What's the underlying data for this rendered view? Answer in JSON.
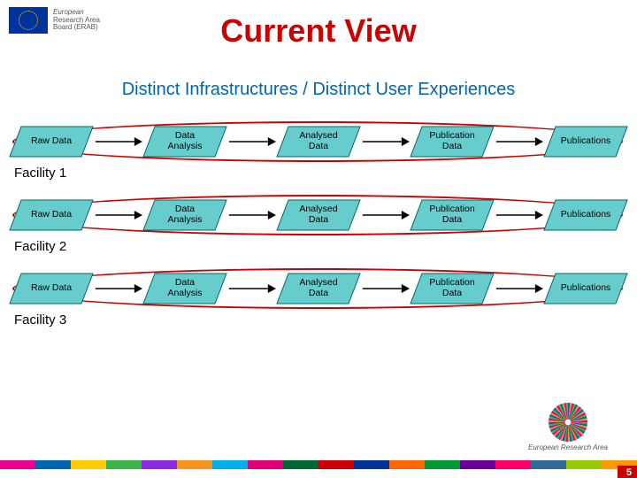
{
  "header": {
    "logo_line1": "European",
    "logo_line2": "Research Area",
    "logo_line3": "Board (ERAB)"
  },
  "title": {
    "text": "Current View",
    "color": "#cc0000"
  },
  "subtitle": {
    "text": "Distinct Infrastructures /  Distinct User Experiences",
    "color": "#0066b3"
  },
  "diagram": {
    "node_fill": "#66cccc",
    "node_stroke": "#006666",
    "arrow_color": "#000000",
    "ellipse_color": "#cc0000",
    "rows": [
      {
        "facility_label": "Facility 1",
        "nodes": [
          "Raw Data",
          "Data\nAnalysis",
          "Analysed\nData",
          "Publication\nData",
          "Publications"
        ]
      },
      {
        "facility_label": "Facility 2",
        "nodes": [
          "Raw Data",
          "Data\nAnalysis",
          "Analysed\nData",
          "Publication\nData",
          "Publications"
        ]
      },
      {
        "facility_label": "Facility 3",
        "nodes": [
          "Raw Data",
          "Data\nAnalysis",
          "Analysed\nData",
          "Publication\nData",
          "Publications"
        ]
      }
    ]
  },
  "footer": {
    "era_label": "European Research Area",
    "page": "5",
    "stripe_colors": [
      "#ec008c",
      "#0066b3",
      "#ffcc00",
      "#39b54a",
      "#8a2be2",
      "#f7941e",
      "#00aeef",
      "#e2007a",
      "#006633",
      "#cc0000",
      "#003399",
      "#ff6600",
      "#009933",
      "#660099",
      "#ff0066",
      "#336699",
      "#99cc00",
      "#ff9900"
    ]
  }
}
